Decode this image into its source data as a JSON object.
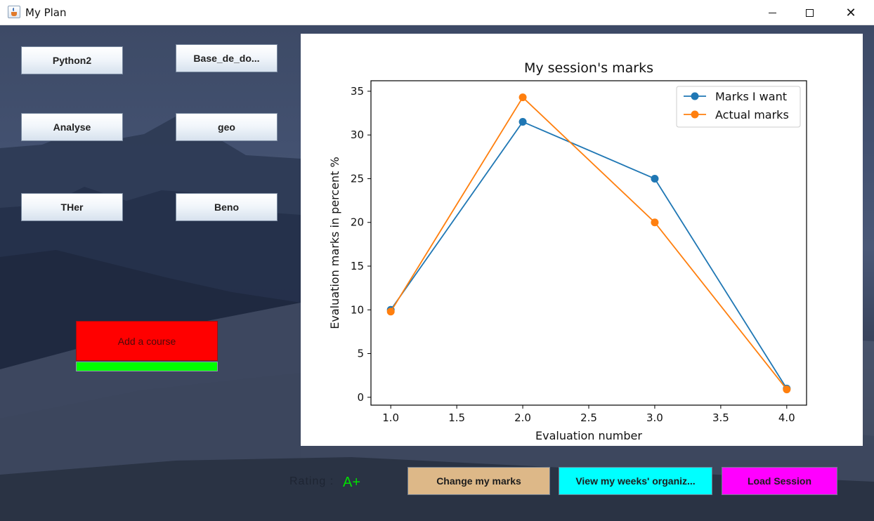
{
  "window": {
    "title": "My Plan",
    "minimize": "",
    "maximize": "",
    "close": "✕"
  },
  "courses": [
    {
      "label": "Python2"
    },
    {
      "label": "Base_de_do..."
    },
    {
      "label": "Analyse"
    },
    {
      "label": "geo"
    },
    {
      "label": "THer"
    },
    {
      "label": "Beno"
    }
  ],
  "add_course": {
    "label": "Add a course",
    "progress": 1.0
  },
  "rating": {
    "label": "Rating :",
    "value": "A+"
  },
  "actions": {
    "change_marks": "Change my marks",
    "view_weeks": "View my weeks' organiz...",
    "load_session": "Load Session"
  },
  "colors": {
    "series_want": "#1f77b4",
    "series_actual": "#ff7f0e",
    "add_course_bg": "#ff0000",
    "progress_fill": "#00ff00",
    "change_marks_bg": "#ddb888",
    "view_weeks_bg": "#00ffff",
    "load_session_bg": "#ff00ff",
    "rating_value": "#00e000"
  },
  "chart_data": {
    "type": "line",
    "title": "My session's marks",
    "xlabel": "Evaluation number",
    "ylabel": "Evaluation marks in percent %",
    "x": [
      1.0,
      2.0,
      3.0,
      4.0
    ],
    "xlim": [
      0.85,
      4.15
    ],
    "ylim": [
      -0.9,
      36.2
    ],
    "xticks": [
      1.0,
      1.5,
      2.0,
      2.5,
      3.0,
      3.5,
      4.0
    ],
    "xtick_labels": [
      "1.0",
      "1.5",
      "2.0",
      "2.5",
      "3.0",
      "3.5",
      "4.0"
    ],
    "yticks": [
      0,
      5,
      10,
      15,
      20,
      25,
      30,
      35
    ],
    "ytick_labels": [
      "0",
      "5",
      "10",
      "15",
      "20",
      "25",
      "30",
      "35"
    ],
    "grid": false,
    "legend_position": "top-right",
    "series": [
      {
        "name": "Marks I want",
        "values": [
          10.0,
          31.5,
          25.0,
          1.0
        ]
      },
      {
        "name": "Actual marks",
        "values": [
          9.8,
          34.3,
          20.0,
          0.9
        ]
      }
    ]
  }
}
